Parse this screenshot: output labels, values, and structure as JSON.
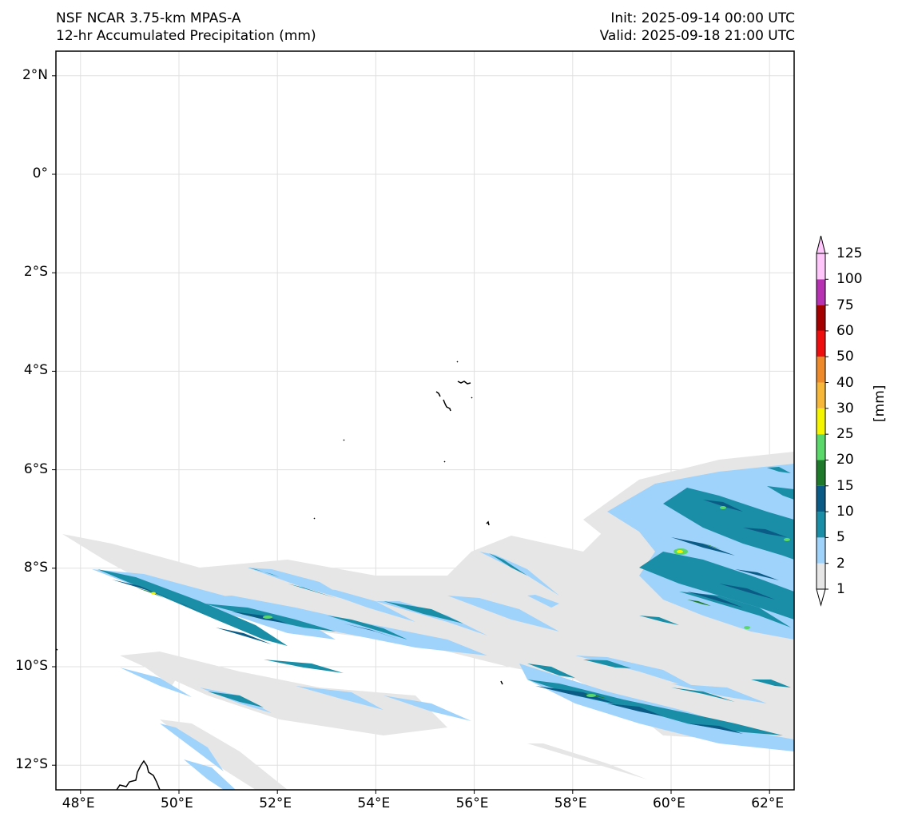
{
  "header": {
    "model": "NSF NCAR 3.75-km MPAS-A",
    "field": "12-hr Accumulated Precipitation (mm)",
    "init": "Init: 2025-09-14 00:00 UTC",
    "valid": "Valid: 2025-09-18 21:00 UTC"
  },
  "map": {
    "lon_range": [
      47.5,
      62.5
    ],
    "lat_range": [
      -12.5,
      2.5
    ],
    "lon_ticks": [
      {
        "value": 48,
        "label": "48°E"
      },
      {
        "value": 50,
        "label": "50°E"
      },
      {
        "value": 52,
        "label": "52°E"
      },
      {
        "value": 54,
        "label": "54°E"
      },
      {
        "value": 56,
        "label": "56°E"
      },
      {
        "value": 58,
        "label": "58°E"
      },
      {
        "value": 60,
        "label": "60°E"
      },
      {
        "value": 62,
        "label": "62°E"
      }
    ],
    "lat_ticks": [
      {
        "value": 2,
        "label": "2°N"
      },
      {
        "value": 0,
        "label": "0°"
      },
      {
        "value": -2,
        "label": "2°S"
      },
      {
        "value": -4,
        "label": "4°S"
      },
      {
        "value": -6,
        "label": "6°S"
      },
      {
        "value": -8,
        "label": "8°S"
      },
      {
        "value": -10,
        "label": "10°S"
      },
      {
        "value": -12,
        "label": "12°S"
      }
    ],
    "gridlines": true,
    "land_features": [
      "seychelles-islands",
      "madagascar-north-tip"
    ]
  },
  "colorbar": {
    "unit": "[mm]",
    "levels": [
      {
        "label": "1",
        "color": "#e6e6e6"
      },
      {
        "label": "2",
        "color": "#9fd3fb"
      },
      {
        "label": "5",
        "color": "#1a8ea6"
      },
      {
        "label": "10",
        "color": "#0b5b87"
      },
      {
        "label": "15",
        "color": "#1e7a2a"
      },
      {
        "label": "20",
        "color": "#5bd86a"
      },
      {
        "label": "25",
        "color": "#f5f500"
      },
      {
        "label": "30",
        "color": "#f7b83a"
      },
      {
        "label": "40",
        "color": "#ef8a2a"
      },
      {
        "label": "50",
        "color": "#ee0e0e"
      },
      {
        "label": "60",
        "color": "#a40000"
      },
      {
        "label": "75",
        "color": "#b732b3"
      },
      {
        "label": "100",
        "color": "#ffc6fb"
      },
      {
        "label": "125",
        "color": ""
      }
    ]
  }
}
